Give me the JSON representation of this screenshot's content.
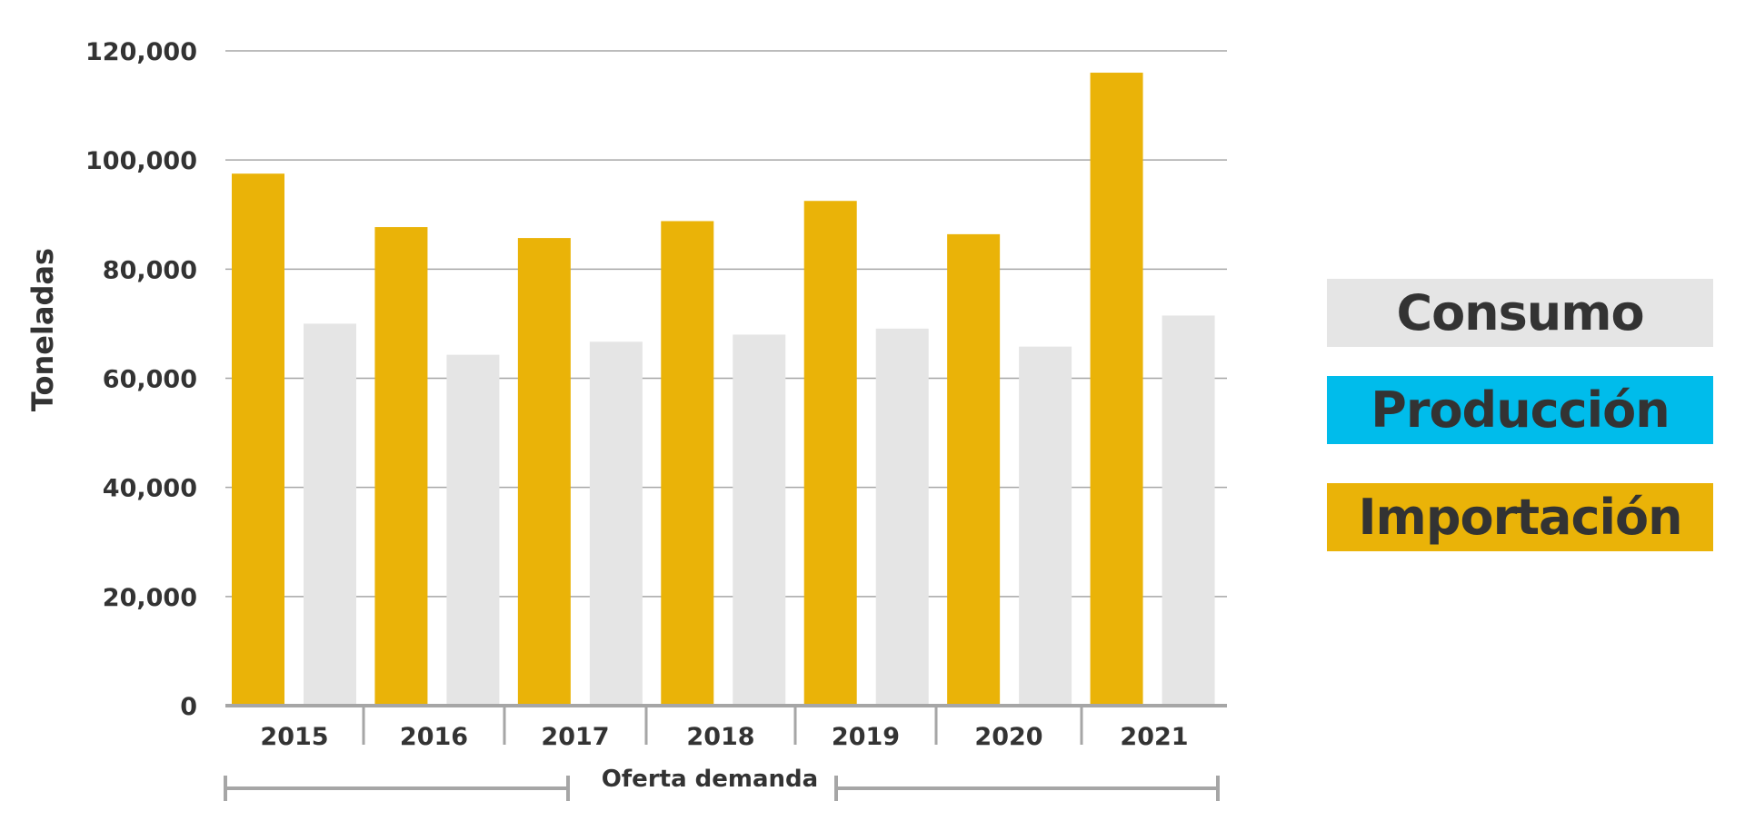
{
  "chart_data": {
    "type": "bar",
    "categories": [
      "2015",
      "2016",
      "2017",
      "2018",
      "2019",
      "2020",
      "2021"
    ],
    "series": [
      {
        "name": "Importación",
        "color": "#EAB308",
        "values": [
          97500,
          87700,
          85700,
          88800,
          92500,
          86400,
          116000
        ]
      },
      {
        "name": "Consumo",
        "color": "#E5E5E5",
        "values": [
          70000,
          64300,
          66700,
          68000,
          69100,
          65800,
          71500
        ]
      }
    ],
    "yticks": [
      "0",
      "20,000",
      "40,000",
      "60,000",
      "80,000",
      "100,000",
      "120,000"
    ],
    "ylim": [
      0,
      120000
    ],
    "ylabel": "Toneladas",
    "xgroup_label": "Oferta demanda",
    "grid": true,
    "legend": {
      "placement": "right",
      "items": [
        {
          "label": "Consumo",
          "color": "#E5E5E5"
        },
        {
          "label": "Producción",
          "color": "#00BCEB"
        },
        {
          "label": "Importación",
          "color": "#EAB308"
        }
      ]
    }
  }
}
